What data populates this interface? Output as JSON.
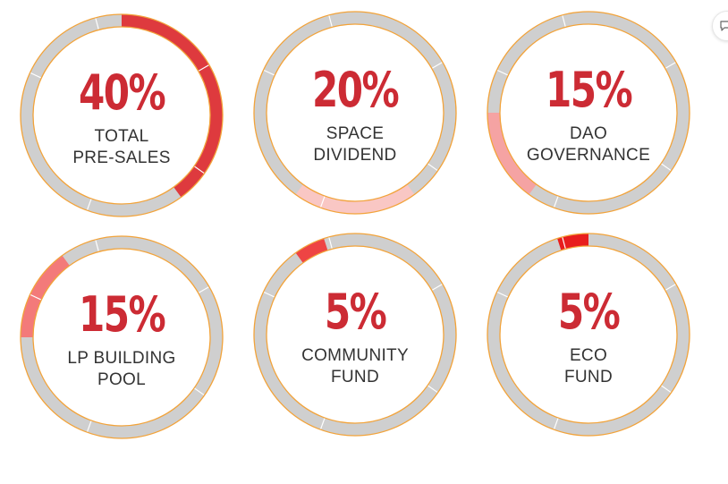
{
  "colors": {
    "ring_track": "#cfcfcf",
    "ring_border": "#f2a33a",
    "text_primary": "#cc2b34",
    "text_secondary": "#333333"
  },
  "chart_data": {
    "type": "pie",
    "title": "",
    "segments": [
      {
        "value": 40,
        "value_label": "40%",
        "label_lines": [
          "TOTAL",
          "PRE-SALES"
        ],
        "color": "#de3a3e",
        "start_deg": 0
      },
      {
        "value": 20,
        "value_label": "20%",
        "label_lines": [
          "SPACE",
          "DIVIDEND"
        ],
        "color": "#f9c7c4",
        "start_deg": 144
      },
      {
        "value": 15,
        "value_label": "15%",
        "label_lines": [
          "DAO",
          "GOVERNANCE"
        ],
        "color": "#f5a3a3",
        "start_deg": 216
      },
      {
        "value": 15,
        "value_label": "15%",
        "label_lines": [
          "LP BUILDING",
          "POOL"
        ],
        "color": "#f37a7a",
        "start_deg": 270
      },
      {
        "value": 5,
        "value_label": "5%",
        "label_lines": [
          "COMMUNITY",
          "FUND"
        ],
        "color": "#ee4444",
        "start_deg": 324
      },
      {
        "value": 5,
        "value_label": "5%",
        "label_lines": [
          "ECO",
          "FUND"
        ],
        "color": "#e81e1e",
        "start_deg": 342
      }
    ]
  },
  "widgets": {
    "chat_icon": "chat-bubble-icon"
  }
}
